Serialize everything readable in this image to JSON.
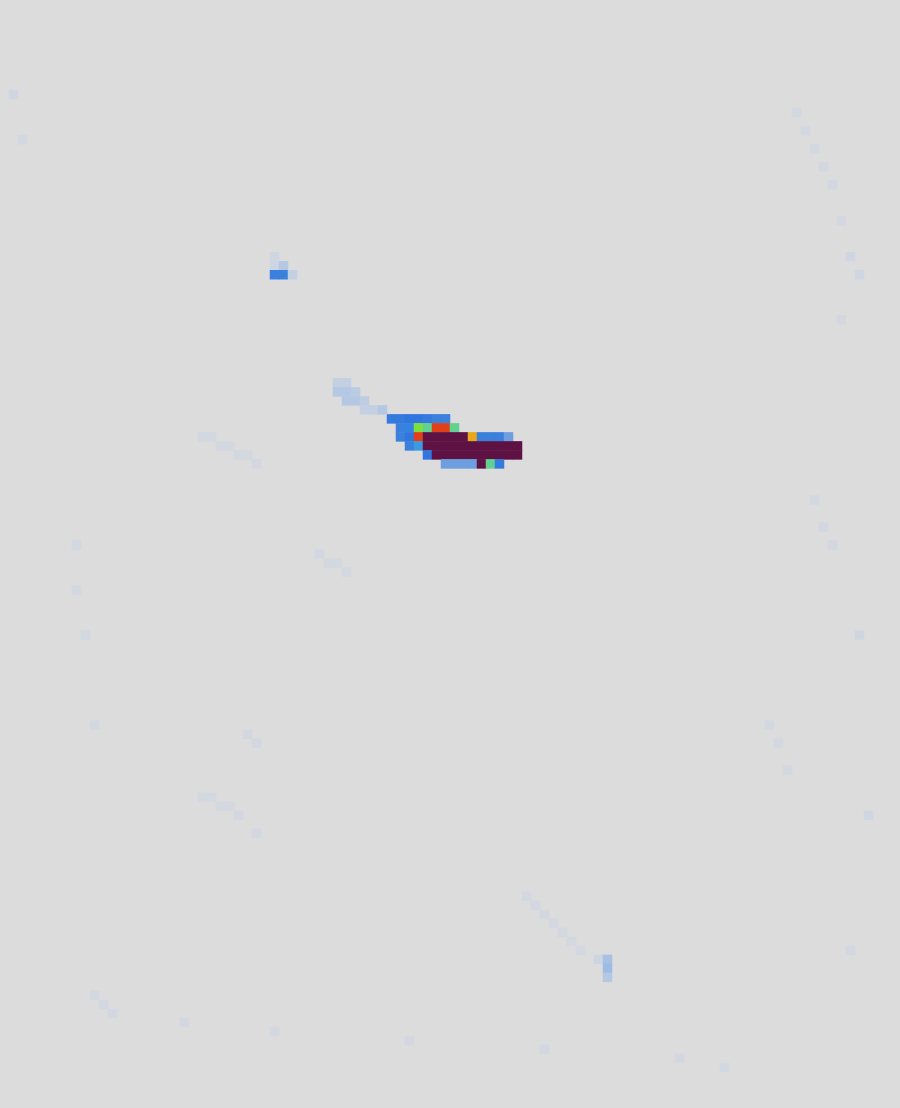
{
  "chart_data": {
    "type": "heatmap",
    "tick_labels": false,
    "columns": 100,
    "rows": 123,
    "colorbar": {
      "range": [
        0,
        1
      ],
      "colors": [
        "#dcdcdc",
        "#cdd5e2",
        "#9dbbe3",
        "#3a80dc",
        "#2f74e0",
        "#44c2e0",
        "#7ee040",
        "#e4e020",
        "#f07010",
        "#d01020",
        "#5e1244"
      ]
    },
    "cells": [
      [
        43,
        46,
        0.35
      ],
      [
        44,
        46,
        0.35
      ],
      [
        45,
        46,
        0.38
      ],
      [
        46,
        46,
        0.38
      ],
      [
        47,
        46,
        0.35
      ],
      [
        48,
        46,
        0.3
      ],
      [
        49,
        46,
        0.3
      ],
      [
        44,
        47,
        0.3
      ],
      [
        45,
        47,
        0.42
      ],
      [
        46,
        47,
        0.6
      ],
      [
        47,
        47,
        0.55
      ],
      [
        48,
        47,
        0.85
      ],
      [
        49,
        47,
        0.85
      ],
      [
        50,
        47,
        0.55
      ],
      [
        44,
        48,
        0.3
      ],
      [
        45,
        48,
        0.38
      ],
      [
        46,
        48,
        0.85
      ],
      [
        47,
        48,
        1
      ],
      [
        48,
        48,
        1
      ],
      [
        49,
        48,
        1
      ],
      [
        50,
        48,
        1
      ],
      [
        51,
        48,
        1
      ],
      [
        52,
        48,
        0.75
      ],
      [
        53,
        48,
        0.3
      ],
      [
        54,
        48,
        0.3
      ],
      [
        55,
        48,
        0.3
      ],
      [
        56,
        48,
        0.25
      ],
      [
        45,
        49,
        0.3
      ],
      [
        46,
        49,
        0.45
      ],
      [
        47,
        49,
        1
      ],
      [
        48,
        49,
        1
      ],
      [
        49,
        49,
        1
      ],
      [
        50,
        49,
        1
      ],
      [
        51,
        49,
        1
      ],
      [
        52,
        49,
        1
      ],
      [
        53,
        49,
        1
      ],
      [
        54,
        49,
        1
      ],
      [
        55,
        49,
        1
      ],
      [
        56,
        49,
        1
      ],
      [
        57,
        49,
        1
      ],
      [
        47,
        50,
        0.38
      ],
      [
        48,
        50,
        1
      ],
      [
        49,
        50,
        1
      ],
      [
        50,
        50,
        1
      ],
      [
        51,
        50,
        1
      ],
      [
        52,
        50,
        1
      ],
      [
        53,
        50,
        1
      ],
      [
        54,
        50,
        1
      ],
      [
        55,
        50,
        1
      ],
      [
        56,
        50,
        1
      ],
      [
        57,
        50,
        1
      ],
      [
        49,
        51,
        0.25
      ],
      [
        50,
        51,
        0.25
      ],
      [
        51,
        51,
        0.25
      ],
      [
        52,
        51,
        0.25
      ],
      [
        53,
        51,
        1
      ],
      [
        54,
        51,
        0.55
      ],
      [
        55,
        51,
        0.35
      ],
      [
        37,
        42,
        0.12
      ],
      [
        38,
        42,
        0.12
      ],
      [
        37,
        43,
        0.15
      ],
      [
        38,
        43,
        0.15
      ],
      [
        39,
        43,
        0.14
      ],
      [
        38,
        44,
        0.15
      ],
      [
        39,
        44,
        0.15
      ],
      [
        40,
        44,
        0.13
      ],
      [
        40,
        45,
        0.12
      ],
      [
        41,
        45,
        0.12
      ],
      [
        42,
        45,
        0.15
      ],
      [
        30,
        28,
        0.08
      ],
      [
        30,
        29,
        0.1
      ],
      [
        31,
        29,
        0.15
      ],
      [
        31,
        30,
        0.3
      ],
      [
        30,
        30,
        0.3
      ],
      [
        32,
        30,
        0.12
      ],
      [
        22,
        48,
        0.07
      ],
      [
        23,
        48,
        0.07
      ],
      [
        24,
        49,
        0.07
      ],
      [
        25,
        49,
        0.07
      ],
      [
        26,
        50,
        0.07
      ],
      [
        27,
        50,
        0.07
      ],
      [
        28,
        51,
        0.07
      ],
      [
        35,
        61,
        0.07
      ],
      [
        36,
        62,
        0.07
      ],
      [
        37,
        62,
        0.07
      ],
      [
        38,
        63,
        0.07
      ],
      [
        27,
        81,
        0.07
      ],
      [
        28,
        82,
        0.07
      ],
      [
        22,
        88,
        0.07
      ],
      [
        23,
        88,
        0.07
      ],
      [
        24,
        89,
        0.07
      ],
      [
        25,
        89,
        0.07
      ],
      [
        26,
        90,
        0.07
      ],
      [
        28,
        92,
        0.07
      ],
      [
        58,
        99,
        0.07
      ],
      [
        59,
        100,
        0.07
      ],
      [
        60,
        101,
        0.07
      ],
      [
        61,
        102,
        0.07
      ],
      [
        62,
        103,
        0.07
      ],
      [
        63,
        104,
        0.07
      ],
      [
        64,
        105,
        0.07
      ],
      [
        66,
        106,
        0.1
      ],
      [
        67,
        106,
        0.18
      ],
      [
        67,
        107,
        0.2
      ],
      [
        67,
        108,
        0.15
      ],
      [
        88,
        12,
        0.07
      ],
      [
        89,
        14,
        0.07
      ],
      [
        90,
        16,
        0.07
      ],
      [
        91,
        18,
        0.07
      ],
      [
        92,
        20,
        0.07
      ],
      [
        93,
        24,
        0.07
      ],
      [
        94,
        28,
        0.08
      ],
      [
        95,
        30,
        0.08
      ],
      [
        93,
        35,
        0.07
      ],
      [
        90,
        55,
        0.07
      ],
      [
        91,
        58,
        0.07
      ],
      [
        92,
        60,
        0.07
      ],
      [
        85,
        80,
        0.07
      ],
      [
        86,
        82,
        0.07
      ],
      [
        87,
        85,
        0.07
      ],
      [
        95,
        70,
        0.08
      ],
      [
        96,
        90,
        0.08
      ],
      [
        94,
        105,
        0.07
      ],
      [
        1,
        10,
        0.08
      ],
      [
        2,
        15,
        0.07
      ],
      [
        8,
        60,
        0.07
      ],
      [
        8,
        65,
        0.07
      ],
      [
        9,
        70,
        0.07
      ],
      [
        10,
        80,
        0.07
      ],
      [
        10,
        110,
        0.07
      ],
      [
        11,
        111,
        0.07
      ],
      [
        12,
        112,
        0.07
      ],
      [
        20,
        113,
        0.07
      ],
      [
        30,
        114,
        0.07
      ],
      [
        45,
        115,
        0.07
      ],
      [
        60,
        116,
        0.07
      ],
      [
        75,
        117,
        0.07
      ],
      [
        80,
        118,
        0.07
      ]
    ]
  }
}
